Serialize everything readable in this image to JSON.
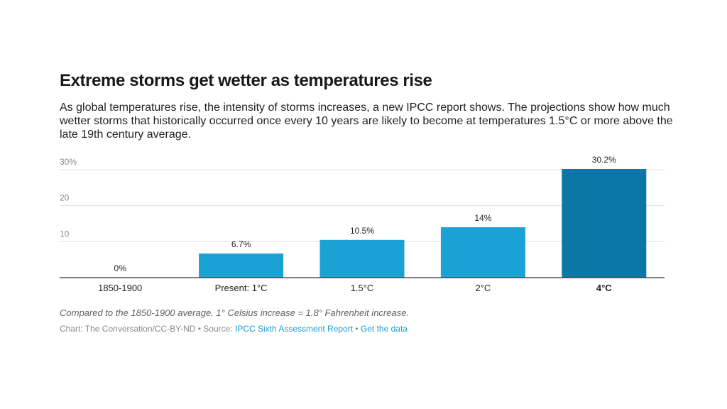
{
  "colors": {
    "bar": "#1ba2d4",
    "bar_highlight": "#0a77a6",
    "grid": "#e0e0e0",
    "axis": "#333333",
    "tick_text": "#888888",
    "label_text": "#222222",
    "link": "#1a9dd8"
  },
  "header": {
    "title": "Extreme storms get wetter as temperatures rise",
    "subtitle": "As global temperatures rise, the intensity of storms increases, a new IPCC report shows. The projections show how much wetter storms that historically occurred once every 10 years are likely to become at temperatures 1.5°C or more above the late 19th century average."
  },
  "chart_data": {
    "type": "bar",
    "title": "Extreme storms get wetter as temperatures rise",
    "xlabel": "",
    "ylabel": "",
    "categories": [
      "1850-1900",
      "Present: 1°C",
      "1.5°C",
      "2°C",
      "4°C"
    ],
    "values": [
      0,
      6.7,
      10.5,
      14,
      30.2
    ],
    "value_labels": [
      "0%",
      "6.7%",
      "10.5%",
      "14%",
      "30.2%"
    ],
    "highlight_index": 4,
    "ylim": [
      0,
      30
    ],
    "yticks": [
      10,
      20,
      30
    ],
    "ytick_labels": [
      "10",
      "20",
      "30%"
    ],
    "grid": true,
    "legend": "none"
  },
  "footer": {
    "note": "Compared to the 1850-1900 average. 1° Celsius increase = 1.8° Fahrenheit increase.",
    "source_prefix": "Chart: The Conversation/CC-BY-ND",
    "source_sep1": " • Source: ",
    "source_link": "IPCC Sixth Assessment Report",
    "source_sep2": " • ",
    "data_link": "Get the data"
  }
}
